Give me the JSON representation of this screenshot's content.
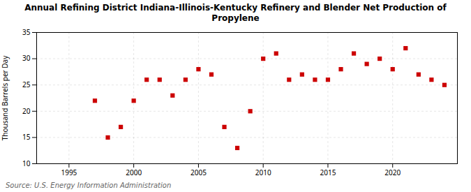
{
  "chart_data": {
    "type": "scatter",
    "title": "Annual Refining District Indiana-Illinois-Kentucky Refinery and Blender Net Production of\nPropylene",
    "ylabel": "Thousand Barrels per Day",
    "source": "Source: U.S. Energy Information Administration",
    "x": [
      1997,
      1998,
      1999,
      2000,
      2001,
      2002,
      2003,
      2004,
      2005,
      2006,
      2007,
      2008,
      2009,
      2010,
      2011,
      2012,
      2013,
      2014,
      2015,
      2016,
      2017,
      2018,
      2019,
      2020,
      2021,
      2022,
      2023,
      2024
    ],
    "values": [
      22,
      15,
      17,
      22,
      26,
      26,
      23,
      26,
      28,
      27,
      17,
      13,
      20,
      30,
      31,
      26,
      27,
      26,
      26,
      28,
      31,
      29,
      30,
      28,
      32,
      27,
      26,
      25
    ],
    "color": "#cc0000",
    "marker": "square",
    "xlim": [
      1992.5,
      2025
    ],
    "xticks": [
      1995,
      2000,
      2005,
      2010,
      2015,
      2020
    ],
    "ylim": [
      10,
      35
    ],
    "yticks": [
      10,
      15,
      20,
      25,
      30,
      35
    ],
    "grid": true
  }
}
